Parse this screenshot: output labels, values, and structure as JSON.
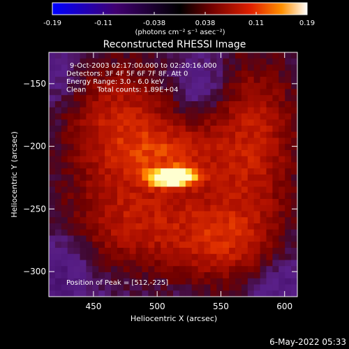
{
  "chart_data": {
    "type": "heatmap",
    "title": "Reconstructed RHESSI Image",
    "xlabel": "Heliocentric X (arcsec)",
    "ylabel": "Heliocentric Y (arcsec)",
    "xlim": [
      415,
      610
    ],
    "ylim": [
      -320,
      -125
    ],
    "x_ticks": [
      450,
      500,
      550,
      600
    ],
    "y_ticks": [
      -150,
      -200,
      -250,
      -300
    ],
    "colorbar": {
      "ticks": [
        "-0.19",
        "-0.11",
        "-0.038",
        "0.038",
        "0.11",
        "0.19"
      ],
      "range": [
        -0.19,
        0.19
      ],
      "units_label": "(photons cm⁻² s⁻¹ asec⁻²)",
      "colormap": [
        "#0000ff",
        "#400070",
        "#000000",
        "#6e0000",
        "#e02000",
        "#ff9000",
        "#ffffff"
      ]
    },
    "annotations": [
      "9-Oct-2003 02:17:00.000 to 02:20:16.000",
      "Detectors: 3F 4F 5F 6F 7F 8F, Att 0",
      "Energy Range: 3.0 - 6.0 keV",
      "Clean     Total counts: 1.89E+04"
    ],
    "peak_label": "Position of Peak = [512,-225]",
    "peak": [
      512,
      -225
    ],
    "timestamp": "6-May-2022 05:33"
  }
}
